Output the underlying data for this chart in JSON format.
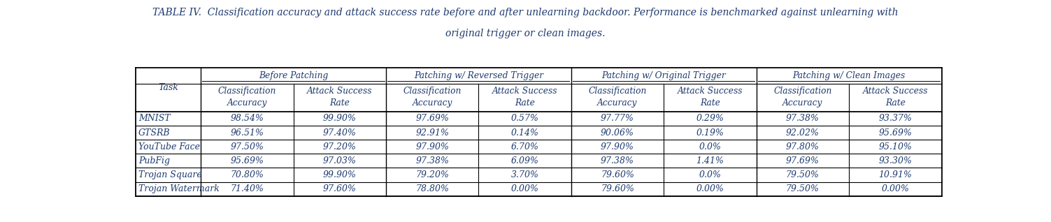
{
  "title_line1": "TABLE IV.  Classification accuracy and attack success rate before and after unlearning backdoor. Performance is benchmarked against unlearning with",
  "title_line2": "original trigger or clean images.",
  "col_groups": [
    {
      "label": "Before Patching",
      "span": 2
    },
    {
      "label": "Patching w/ Reversed Trigger",
      "span": 2
    },
    {
      "label": "Patching w/ Original Trigger",
      "span": 2
    },
    {
      "label": "Patching w/ Clean Images",
      "span": 2
    }
  ],
  "sub_headers_line1": [
    "Classification",
    "Attack Success",
    "Classification",
    "Attack Success",
    "Classification",
    "Attack Success",
    "Classification",
    "Attack Success"
  ],
  "sub_headers_line2": [
    "Accuracy",
    "Rate",
    "Accuracy",
    "Rate",
    "Accuracy",
    "Rate",
    "Accuracy",
    "Rate"
  ],
  "tasks": [
    "MNIST",
    "GTSRB",
    "YouTube Face",
    "PubFig",
    "Trojan Square",
    "Trojan Watermark"
  ],
  "data": [
    [
      "98.54%",
      "99.90%",
      "97.69%",
      "0.57%",
      "97.77%",
      "0.29%",
      "97.38%",
      "93.37%"
    ],
    [
      "96.51%",
      "97.40%",
      "92.91%",
      "0.14%",
      "90.06%",
      "0.19%",
      "92.02%",
      "95.69%"
    ],
    [
      "97.50%",
      "97.20%",
      "97.90%",
      "6.70%",
      "97.90%",
      "0.0%",
      "97.80%",
      "95.10%"
    ],
    [
      "95.69%",
      "97.03%",
      "97.38%",
      "6.09%",
      "97.38%",
      "1.41%",
      "97.69%",
      "93.30%"
    ],
    [
      "70.80%",
      "99.90%",
      "79.20%",
      "3.70%",
      "79.60%",
      "0.0%",
      "79.50%",
      "10.91%"
    ],
    [
      "71.40%",
      "97.60%",
      "78.80%",
      "0.00%",
      "79.60%",
      "0.00%",
      "79.50%",
      "0.00%"
    ]
  ],
  "text_color": "#1e3a6e",
  "bg_color": "#ffffff",
  "line_color": "#000000",
  "title_fontsize": 10.0,
  "header_fontsize": 8.8,
  "data_fontsize": 9.0,
  "task_fontsize": 9.0
}
